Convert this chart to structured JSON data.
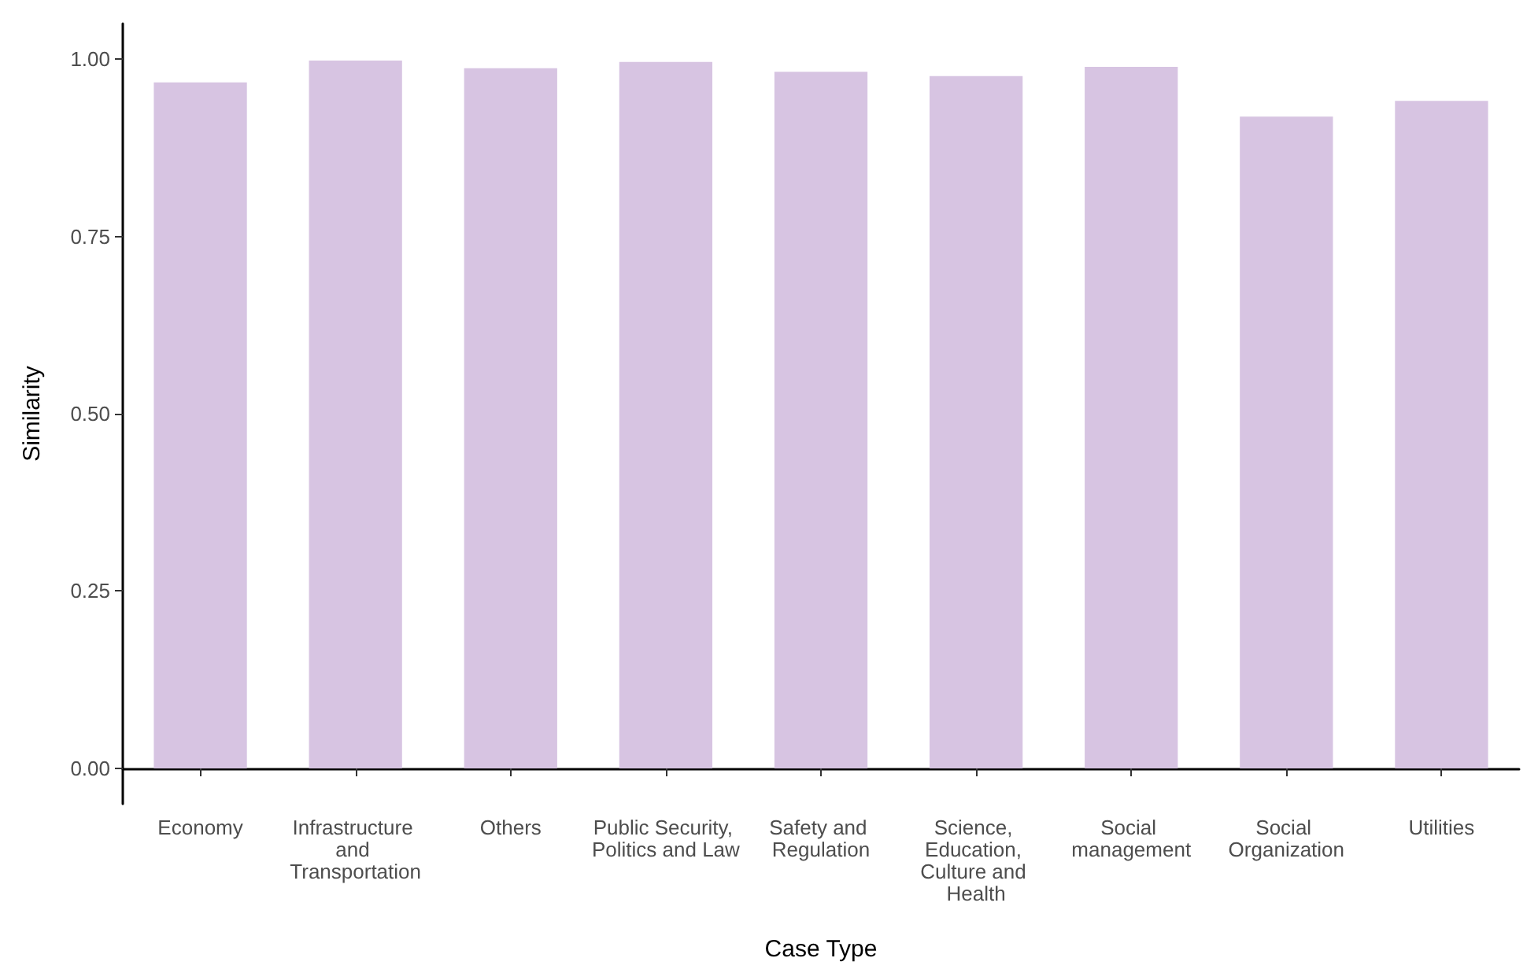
{
  "chart_data": {
    "type": "bar",
    "xlabel": "Case Type",
    "ylabel": "Similarity",
    "categories": [
      "Economy",
      "Infrastructure and Transportation",
      "Others",
      "Public Security, Politics and Law",
      "Safety and Regulation",
      "Science, Education, Culture and Health",
      "Social management",
      "Social Organization",
      "Utilities"
    ],
    "values": [
      0.967,
      0.998,
      0.987,
      0.996,
      0.982,
      0.976,
      0.989,
      0.919,
      0.941
    ],
    "color": "#d7c4e2",
    "ylim": [
      -0.05,
      1.05
    ],
    "yticks": [
      {
        "value": 0,
        "label": "0.00"
      },
      {
        "value": 0.25,
        "label": "0.25"
      },
      {
        "value": 0.5,
        "label": "0.50"
      },
      {
        "value": 0.75,
        "label": "0.75"
      },
      {
        "value": 1,
        "label": "1.00"
      }
    ],
    "grid": false
  }
}
